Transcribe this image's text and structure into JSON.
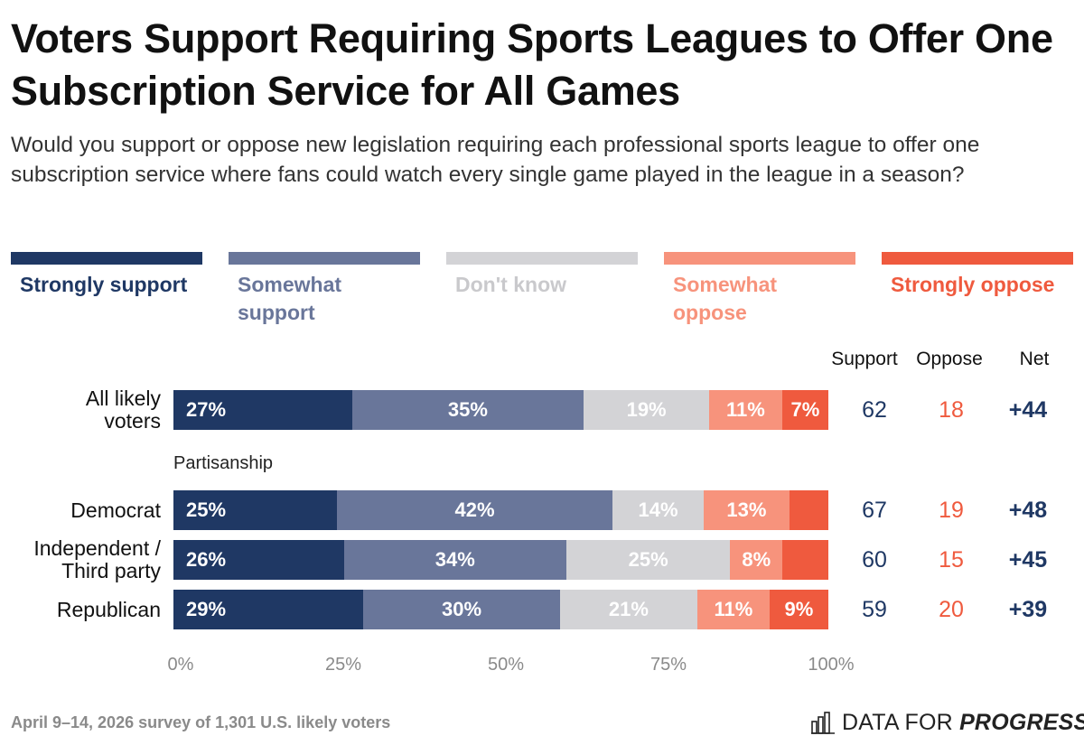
{
  "title": "Voters Support Requiring Sports Leagues to Offer One Subscription Service for All Games",
  "subtitle": "Would you support or oppose new legislation requiring each professional sports league to offer one subscription service where fans could watch every single game played in the league in a season?",
  "legend": [
    {
      "label": "Strongly support",
      "color": "#1f3864",
      "text_color": "#1f3864"
    },
    {
      "label": "Somewhat support",
      "color": "#69769a",
      "text_color": "#69769a"
    },
    {
      "label": "Don't know",
      "color": "#d3d3d6",
      "text_color": "#c9c9cc"
    },
    {
      "label": "Somewhat oppose",
      "color": "#f7937c",
      "text_color": "#f7937c"
    },
    {
      "label": "Strongly oppose",
      "color": "#ef5a3e",
      "text_color": "#ef5a3e"
    }
  ],
  "columns": {
    "support": "Support",
    "oppose": "Oppose",
    "net": "Net"
  },
  "section_label": "Partisanship",
  "chart_data": {
    "type": "bar",
    "orientation": "horizontal",
    "stacked": true,
    "categories": [
      "All likely voters",
      "Democrat",
      "Independent / Third party",
      "Republican"
    ],
    "series": [
      {
        "name": "Strongly support",
        "values": [
          27,
          25,
          26,
          29
        ],
        "labels": [
          "27%",
          "25%",
          "26%",
          "29%"
        ]
      },
      {
        "name": "Somewhat support",
        "values": [
          35,
          42,
          34,
          30
        ],
        "labels": [
          "35%",
          "42%",
          "34%",
          "30%"
        ]
      },
      {
        "name": "Don't know",
        "values": [
          19,
          14,
          25,
          21
        ],
        "labels": [
          "19%",
          "14%",
          "25%",
          "21%"
        ]
      },
      {
        "name": "Somewhat oppose",
        "values": [
          11,
          13,
          8,
          11
        ],
        "labels": [
          "11%",
          "13%",
          "8%",
          "11%"
        ]
      },
      {
        "name": "Strongly oppose",
        "values": [
          7,
          6,
          7,
          9
        ],
        "labels": [
          "7%",
          "",
          "",
          "9%"
        ]
      }
    ],
    "support": [
      62,
      67,
      60,
      59
    ],
    "oppose": [
      18,
      19,
      15,
      20
    ],
    "net": [
      "+44",
      "+48",
      "+45",
      "+39"
    ],
    "xlim": [
      0,
      100
    ],
    "xticks": [
      "0%",
      "25%",
      "50%",
      "75%",
      "100%"
    ],
    "legend_position": "top"
  },
  "footer": "April 9–14, 2026 survey of 1,301 U.S. likely voters",
  "brand": {
    "name_light": "DATA FOR",
    "name_bold": "PROGRESS"
  },
  "colors": {
    "support_number": "#1f3864",
    "oppose_number": "#ef5a3e",
    "net_number": "#1f3864"
  }
}
